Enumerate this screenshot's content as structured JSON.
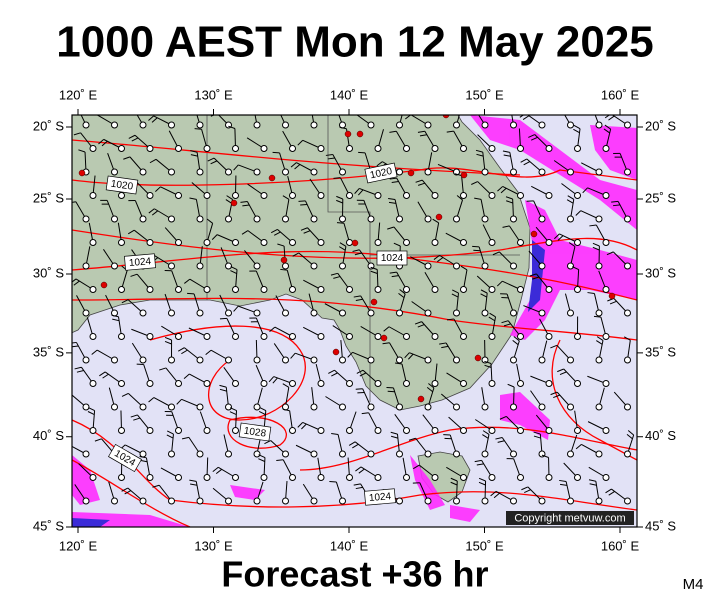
{
  "title": "1000 AEST Mon 12 May 2025",
  "footer": "Forecast +36 hr",
  "model": "M4",
  "copyright": "Copyright metvuw.com",
  "map": {
    "lon_ticks": [
      {
        "value": 120,
        "label": "120˚ E"
      },
      {
        "value": 130,
        "label": "130˚ E"
      },
      {
        "value": 140,
        "label": "140˚ E"
      },
      {
        "value": 150,
        "label": "150˚ E"
      },
      {
        "value": 160,
        "label": "160˚ E"
      }
    ],
    "lat_ticks": [
      {
        "value": 20,
        "label": "20˚ S"
      },
      {
        "value": 25,
        "label": "25˚ S"
      },
      {
        "value": 30,
        "label": "30˚ S"
      },
      {
        "value": 35,
        "label": "35˚ S"
      },
      {
        "value": 40,
        "label": "40˚ S"
      },
      {
        "value": 45,
        "label": "45˚ S"
      }
    ],
    "isobar_labels": [
      "1020",
      "1020",
      "1024",
      "1024",
      "1028",
      "1024",
      "1024"
    ]
  }
}
